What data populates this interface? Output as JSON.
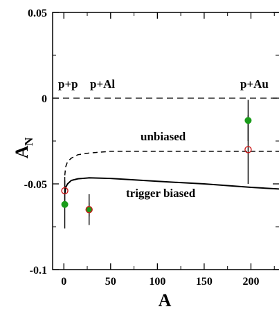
{
  "chart_data": {
    "type": "scatter",
    "title": "",
    "xlabel": "A",
    "ylabel": "A",
    "ylabel_subscript": "N",
    "xlim": [
      -12,
      230
    ],
    "ylim": [
      -0.1,
      0.05
    ],
    "x_ticks": [
      0,
      50,
      100,
      150,
      200
    ],
    "x_tick_labels": [
      "0",
      "50",
      "100",
      "150",
      "200"
    ],
    "y_ticks": [
      -0.1,
      -0.05,
      0,
      0.05
    ],
    "y_tick_labels": [
      "-0.1",
      "-0.05",
      "0",
      "0.05"
    ],
    "grid": false,
    "reference_line": {
      "y": 0,
      "style": "dashed"
    },
    "annotations": {
      "pp": "p+p",
      "pal": "p+Al",
      "pau": "p+Au",
      "unbiased": "unbiased",
      "trigger": "trigger biased"
    },
    "series": [
      {
        "marker": "filled-circle",
        "color": "#1a9c1a",
        "points": [
          {
            "x": 1,
            "y": -0.062,
            "err": 0.014
          },
          {
            "x": 27,
            "y": -0.065,
            "err": 0.009
          },
          {
            "x": 197,
            "y": -0.013,
            "err": 0.012
          }
        ]
      },
      {
        "marker": "open-circle",
        "color": "#cc1a1a",
        "points": [
          {
            "x": 1,
            "y": -0.054,
            "err": 0.008
          },
          {
            "x": 27,
            "y": -0.065,
            "err": 0.004
          },
          {
            "x": 197,
            "y": -0.03,
            "err": 0.02
          }
        ]
      }
    ],
    "curves": [
      {
        "style": "dashed",
        "points": [
          [
            1,
            -0.045
          ],
          [
            2,
            -0.04
          ],
          [
            4,
            -0.037
          ],
          [
            8,
            -0.035
          ],
          [
            15,
            -0.033
          ],
          [
            27,
            -0.032
          ],
          [
            50,
            -0.031
          ],
          [
            100,
            -0.031
          ],
          [
            150,
            -0.031
          ],
          [
            200,
            -0.031
          ],
          [
            230,
            -0.031
          ]
        ]
      },
      {
        "style": "solid",
        "points": [
          [
            1,
            -0.056
          ],
          [
            2,
            -0.052
          ],
          [
            4,
            -0.05
          ],
          [
            8,
            -0.048
          ],
          [
            15,
            -0.047
          ],
          [
            27,
            -0.0465
          ],
          [
            50,
            -0.0468
          ],
          [
            100,
            -0.0485
          ],
          [
            150,
            -0.05
          ],
          [
            200,
            -0.052
          ],
          [
            230,
            -0.053
          ]
        ]
      }
    ]
  }
}
